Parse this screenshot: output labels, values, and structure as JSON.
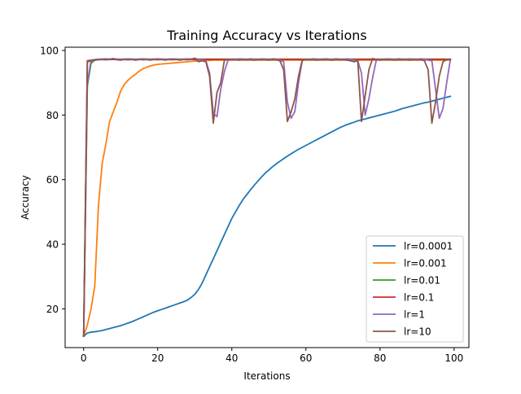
{
  "chart_data": {
    "type": "line",
    "title": "Training Accuracy vs Iterations",
    "xlabel": "Iterations",
    "ylabel": "Accuracy",
    "xlim": [
      -5,
      104
    ],
    "ylim": [
      8,
      101
    ],
    "xticks": [
      0,
      20,
      40,
      60,
      80,
      100
    ],
    "yticks": [
      20,
      40,
      60,
      80,
      100
    ],
    "xtick_labels": [
      "0",
      "20",
      "40",
      "60",
      "80",
      "100"
    ],
    "ytick_labels": [
      "20",
      "40",
      "60",
      "80",
      "100"
    ],
    "grid": false,
    "legend": "lower right",
    "series": [
      {
        "name": "lr=0.0001",
        "color": "#1f77b4",
        "values": [
          11.5,
          12.5,
          12.8,
          12.9,
          13.1,
          13.3,
          13.6,
          13.9,
          14.2,
          14.5,
          14.8,
          15.2,
          15.6,
          16.0,
          16.5,
          17.0,
          17.5,
          18.0,
          18.5,
          19.0,
          19.4,
          19.8,
          20.2,
          20.6,
          21.0,
          21.4,
          21.8,
          22.2,
          22.7,
          23.5,
          24.5,
          26.0,
          28.0,
          30.5,
          33.0,
          35.5,
          38.0,
          40.5,
          43.0,
          45.5,
          48.0,
          50.0,
          52.0,
          53.8,
          55.3,
          56.8,
          58.2,
          59.5,
          60.8,
          62.0,
          63.0,
          64.0,
          64.9,
          65.7,
          66.5,
          67.3,
          68.0,
          68.7,
          69.4,
          70.0,
          70.6,
          71.2,
          71.8,
          72.4,
          73.0,
          73.6,
          74.2,
          74.8,
          75.4,
          76.0,
          76.5,
          77.0,
          77.4,
          77.8,
          78.2,
          78.5,
          78.8,
          79.1,
          79.4,
          79.7,
          80.0,
          80.3,
          80.6,
          80.9,
          81.2,
          81.6,
          82.0,
          82.3,
          82.6,
          82.9,
          83.2,
          83.5,
          83.8,
          84.0,
          84.3,
          84.6,
          84.9,
          85.2,
          85.5,
          85.8
        ]
      },
      {
        "name": "lr=0.001",
        "color": "#ff7f0e",
        "values": [
          11.5,
          15.0,
          20.0,
          27.0,
          52.0,
          65.0,
          71.0,
          78.0,
          81.0,
          84.0,
          87.5,
          89.5,
          90.8,
          91.8,
          92.6,
          93.6,
          94.3,
          94.8,
          95.2,
          95.5,
          95.7,
          95.8,
          95.9,
          96.0,
          96.1,
          96.2,
          96.3,
          96.4,
          96.5,
          96.6,
          96.7,
          96.8,
          96.8,
          96.9,
          96.9,
          97.0,
          97.0,
          97.0,
          97.0,
          97.0,
          97.0,
          97.0,
          97.0,
          97.0,
          97.0,
          97.0,
          97.0,
          97.0,
          97.0,
          97.0,
          97.0,
          97.0,
          97.0,
          97.0,
          97.0,
          97.0,
          97.0,
          97.0,
          97.0,
          97.0,
          97.0,
          97.0,
          97.0,
          97.0,
          97.0,
          97.0,
          97.0,
          97.0,
          97.0,
          97.0,
          97.0,
          97.0,
          97.0,
          97.0,
          97.0,
          97.0,
          97.0,
          97.0,
          97.0,
          97.0,
          97.0,
          97.0,
          97.0,
          97.0,
          97.0,
          97.0,
          97.0,
          97.0,
          97.0,
          97.0,
          97.0,
          97.0,
          97.0,
          97.0,
          97.0,
          97.0,
          97.0,
          97.0,
          97.0,
          97.0
        ]
      },
      {
        "name": "lr=0.01",
        "color": "#2ca02c",
        "values": [
          11.5,
          89.0,
          96.0,
          97.0,
          97.2,
          97.3,
          97.3,
          97.3,
          97.3,
          97.3,
          97.3,
          97.3,
          97.3,
          97.3,
          97.3,
          97.3,
          97.3,
          97.3,
          97.3,
          97.3,
          97.3,
          97.3,
          97.3,
          97.3,
          97.3,
          97.3,
          97.3,
          97.3,
          97.3,
          97.3,
          97.3,
          97.3,
          97.3,
          97.3,
          97.3,
          97.3,
          97.3,
          97.3,
          97.3,
          97.3,
          97.3,
          97.3,
          97.3,
          97.3,
          97.3,
          97.3,
          97.3,
          97.3,
          97.3,
          97.3,
          97.3,
          97.3,
          97.3,
          97.3,
          97.3,
          97.3,
          97.3,
          97.3,
          97.3,
          97.3,
          97.3,
          97.3,
          97.3,
          97.3,
          97.3,
          97.3,
          97.3,
          97.3,
          97.3,
          97.3,
          97.3,
          97.3,
          97.3,
          97.3,
          97.3,
          97.3,
          97.3,
          97.3,
          97.3,
          97.3,
          97.3,
          97.3,
          97.3,
          97.3,
          97.3,
          97.3,
          97.3,
          97.3,
          97.3,
          97.3,
          97.3,
          97.3,
          97.3,
          97.3,
          97.3,
          97.3,
          97.3,
          97.3,
          97.3,
          97.3
        ]
      },
      {
        "name": "lr=0.1",
        "color": "#d62728",
        "values": [
          11.5,
          96.8,
          97.0,
          97.1,
          97.2,
          97.2,
          97.2,
          97.2,
          97.2,
          97.2,
          97.2,
          97.2,
          97.2,
          97.2,
          97.2,
          97.2,
          97.2,
          97.2,
          97.2,
          97.2,
          97.2,
          97.2,
          97.2,
          97.2,
          97.2,
          97.2,
          97.2,
          97.2,
          97.2,
          97.2,
          97.2,
          97.2,
          97.2,
          97.2,
          97.2,
          97.2,
          97.2,
          97.2,
          97.2,
          97.2,
          97.2,
          97.2,
          97.2,
          97.2,
          97.2,
          97.2,
          97.2,
          97.2,
          97.2,
          97.2,
          97.2,
          97.2,
          97.2,
          97.2,
          97.2,
          97.2,
          97.2,
          97.2,
          97.2,
          97.2,
          97.2,
          97.2,
          97.2,
          97.2,
          97.2,
          97.2,
          97.2,
          97.2,
          97.2,
          97.2,
          97.2,
          97.2,
          97.2,
          97.2,
          97.2,
          97.2,
          97.2,
          97.2,
          97.2,
          97.2,
          97.2,
          97.2,
          97.2,
          97.2,
          97.2,
          97.2,
          97.2,
          97.2,
          97.2,
          97.2,
          97.2,
          97.2,
          97.2,
          97.2,
          97.2,
          97.2,
          97.2,
          97.2,
          97.2,
          97.2
        ]
      },
      {
        "name": "lr=1",
        "color": "#9467bd",
        "values": [
          11.5,
          90.0,
          97.0,
          97.2,
          97.3,
          97.3,
          97.4,
          97.3,
          97.4,
          97.3,
          97.2,
          97.3,
          97.4,
          97.3,
          97.2,
          97.3,
          97.4,
          97.3,
          97.2,
          97.3,
          97.4,
          97.3,
          97.2,
          97.3,
          97.4,
          97.3,
          97.2,
          97.3,
          97.4,
          97.3,
          97.6,
          97.2,
          97.0,
          96.8,
          93.0,
          80.5,
          79.5,
          88.0,
          93.5,
          97.0,
          97.3,
          97.2,
          97.4,
          97.3,
          97.2,
          97.4,
          97.3,
          97.2,
          97.4,
          97.3,
          97.2,
          97.4,
          97.3,
          97.0,
          96.5,
          84.0,
          79.0,
          81.0,
          90.0,
          96.8,
          97.3,
          97.2,
          97.4,
          97.3,
          97.2,
          97.4,
          97.3,
          97.2,
          97.4,
          97.3,
          97.2,
          97.4,
          97.3,
          97.0,
          96.8,
          93.0,
          80.0,
          85.0,
          91.5,
          97.0,
          97.3,
          97.2,
          97.4,
          97.3,
          97.2,
          97.4,
          97.3,
          97.2,
          97.4,
          97.3,
          97.2,
          97.4,
          97.3,
          97.0,
          96.8,
          88.0,
          79.0,
          82.0,
          90.0,
          97.2
        ]
      },
      {
        "name": "lr=10",
        "color": "#8c564b",
        "values": [
          11.5,
          96.5,
          96.8,
          97.0,
          97.1,
          97.2,
          97.1,
          97.2,
          97.5,
          97.1,
          97.0,
          97.2,
          97.1,
          97.2,
          97.0,
          97.2,
          97.1,
          97.2,
          97.0,
          97.2,
          97.1,
          97.2,
          97.0,
          97.2,
          97.1,
          97.2,
          97.0,
          97.2,
          97.1,
          97.2,
          97.5,
          96.5,
          96.8,
          96.5,
          92.0,
          77.5,
          87.0,
          90.0,
          97.0,
          97.2,
          97.1,
          97.2,
          97.0,
          97.2,
          97.1,
          97.2,
          97.0,
          97.2,
          97.1,
          97.2,
          97.0,
          97.2,
          97.1,
          96.8,
          94.0,
          78.0,
          81.0,
          85.0,
          92.0,
          97.0,
          97.2,
          97.1,
          97.2,
          97.0,
          97.2,
          97.1,
          97.2,
          97.0,
          97.2,
          97.1,
          97.2,
          97.0,
          96.8,
          96.5,
          96.8,
          78.0,
          86.0,
          94.0,
          97.5,
          97.2,
          97.0,
          97.2,
          97.1,
          97.2,
          97.0,
          97.2,
          97.1,
          97.2,
          97.0,
          97.2,
          97.1,
          97.2,
          96.8,
          94.0,
          77.5,
          84.0,
          92.0,
          96.5,
          97.2,
          97.2
        ]
      }
    ]
  }
}
